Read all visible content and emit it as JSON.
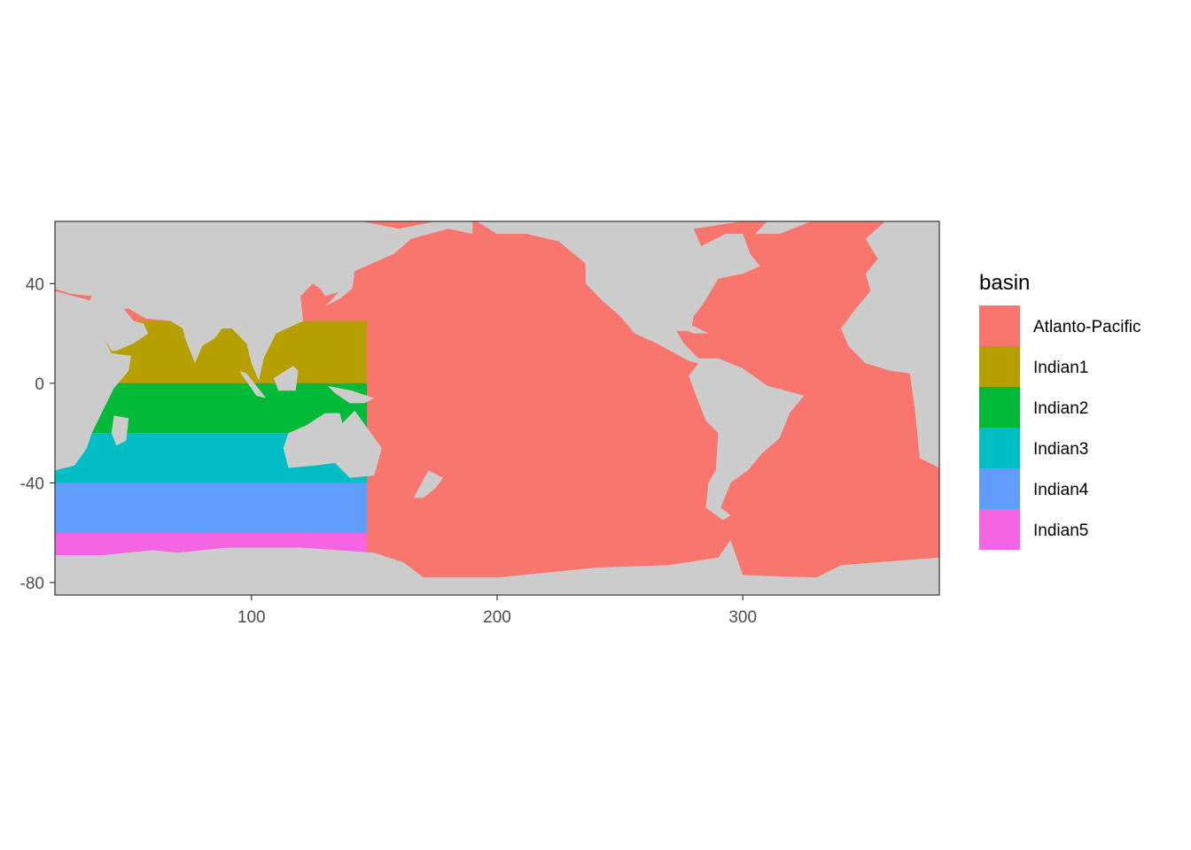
{
  "chart_data": {
    "type": "map",
    "xlim": [
      20,
      380
    ],
    "ylim": [
      -85,
      65
    ],
    "x_ticks": [
      100,
      200,
      300
    ],
    "y_ticks": [
      40,
      0,
      -40,
      -80
    ],
    "x_tick_labels": [
      "100",
      "200",
      "300"
    ],
    "y_tick_labels": [
      "40",
      "0",
      "-40",
      "-80"
    ],
    "land_color": "#cccccc",
    "legend": {
      "title": "basin",
      "placement": "right",
      "entries": [
        {
          "label": "Atlanto-Pacific",
          "color": "#F8766D"
        },
        {
          "label": "Indian1",
          "color": "#B79F00"
        },
        {
          "label": "Indian2",
          "color": "#00BA38"
        },
        {
          "label": "Indian3",
          "color": "#00BFC4"
        },
        {
          "label": "Indian4",
          "color": "#619CFF"
        },
        {
          "label": "Indian5",
          "color": "#F564E3"
        }
      ]
    },
    "basins": [
      {
        "name": "Indian1",
        "lat_range": [
          0,
          25
        ]
      },
      {
        "name": "Indian2",
        "lat_range": [
          -20,
          0
        ]
      },
      {
        "name": "Indian3",
        "lat_range": [
          -40,
          -20
        ]
      },
      {
        "name": "Indian4",
        "lat_range": [
          -60,
          -40
        ]
      },
      {
        "name": "Indian5",
        "lat_range": [
          -70,
          -60
        ]
      }
    ],
    "continents": [
      {
        "name": "Eurasia",
        "points": [
          [
            20,
            65
          ],
          [
            145,
            65
          ],
          [
            160,
            62
          ],
          [
            175,
            65
          ],
          [
            190,
            66
          ],
          [
            190,
            60
          ],
          [
            180,
            62
          ],
          [
            165,
            58
          ],
          [
            158,
            52
          ],
          [
            142,
            45
          ],
          [
            140,
            38
          ],
          [
            130,
            35
          ],
          [
            128,
            38
          ],
          [
            125,
            40
          ],
          [
            120,
            35
          ],
          [
            121,
            25
          ],
          [
            110,
            20
          ],
          [
            105,
            10
          ],
          [
            103,
            1
          ],
          [
            100,
            8
          ],
          [
            98,
            16
          ],
          [
            92,
            22
          ],
          [
            88,
            22
          ],
          [
            85,
            18
          ],
          [
            80,
            15
          ],
          [
            77,
            8
          ],
          [
            73,
            18
          ],
          [
            72,
            22
          ],
          [
            67,
            25
          ],
          [
            57,
            26
          ],
          [
            50,
            30
          ],
          [
            48,
            30
          ],
          [
            52,
            25
          ],
          [
            56,
            24
          ],
          [
            58,
            20
          ],
          [
            52,
            16
          ],
          [
            45,
            13
          ],
          [
            43,
            13
          ],
          [
            40,
            18
          ],
          [
            36,
            25
          ],
          [
            33,
            30
          ],
          [
            35,
            35
          ],
          [
            26,
            36
          ],
          [
            20,
            38
          ]
        ]
      },
      {
        "name": "Africa",
        "points": [
          [
            20,
            37
          ],
          [
            35,
            33
          ],
          [
            40,
            18
          ],
          [
            43,
            12
          ],
          [
            51,
            11
          ],
          [
            50,
            5
          ],
          [
            44,
            -2
          ],
          [
            40,
            -10
          ],
          [
            35,
            -20
          ],
          [
            33,
            -26
          ],
          [
            28,
            -33
          ],
          [
            20,
            -35
          ]
        ]
      },
      {
        "name": "Madagascar",
        "points": [
          [
            44,
            -13
          ],
          [
            50,
            -14
          ],
          [
            49,
            -23
          ],
          [
            45,
            -25
          ],
          [
            43,
            -20
          ]
        ]
      },
      {
        "name": "Australia",
        "points": [
          [
            115,
            -20
          ],
          [
            122,
            -17
          ],
          [
            130,
            -12
          ],
          [
            136,
            -12
          ],
          [
            137,
            -16
          ],
          [
            142,
            -11
          ],
          [
            145,
            -15
          ],
          [
            153,
            -26
          ],
          [
            150,
            -37
          ],
          [
            140,
            -38
          ],
          [
            134,
            -32
          ],
          [
            126,
            -33
          ],
          [
            115,
            -34
          ],
          [
            113,
            -26
          ]
        ]
      },
      {
        "name": "Borneo",
        "points": [
          [
            109,
            2
          ],
          [
            117,
            7
          ],
          [
            119,
            5
          ],
          [
            118,
            -3
          ],
          [
            111,
            -3
          ]
        ]
      },
      {
        "name": "Sumatra",
        "points": [
          [
            95,
            5
          ],
          [
            98,
            4
          ],
          [
            106,
            -6
          ],
          [
            102,
            -5
          ]
        ]
      },
      {
        "name": "New Guinea",
        "points": [
          [
            131,
            -1
          ],
          [
            141,
            -3
          ],
          [
            150,
            -6
          ],
          [
            146,
            -8
          ],
          [
            140,
            -8
          ],
          [
            134,
            -4
          ]
        ]
      },
      {
        "name": "New Zealand",
        "points": [
          [
            166,
            -46
          ],
          [
            172,
            -35
          ],
          [
            178,
            -38
          ],
          [
            175,
            -42
          ],
          [
            170,
            -46
          ]
        ]
      },
      {
        "name": "Japan",
        "points": [
          [
            130,
            31
          ],
          [
            136,
            34
          ],
          [
            141,
            38
          ],
          [
            142,
            44
          ],
          [
            139,
            40
          ],
          [
            133,
            34
          ]
        ]
      },
      {
        "name": "Americas",
        "points": [
          [
            190,
            66
          ],
          [
            200,
            60
          ],
          [
            212,
            60
          ],
          [
            225,
            57
          ],
          [
            236,
            48
          ],
          [
            236,
            40
          ],
          [
            243,
            33
          ],
          [
            250,
            27
          ],
          [
            256,
            20
          ],
          [
            265,
            16
          ],
          [
            278,
            9
          ],
          [
            282,
            8
          ],
          [
            278,
            3
          ],
          [
            281,
            -5
          ],
          [
            285,
            -15
          ],
          [
            290,
            -20
          ],
          [
            289,
            -35
          ],
          [
            286,
            -40
          ],
          [
            285,
            -50
          ],
          [
            292,
            -55
          ],
          [
            295,
            -53
          ],
          [
            291,
            -50
          ],
          [
            295,
            -40
          ],
          [
            302,
            -35
          ],
          [
            308,
            -28
          ],
          [
            315,
            -22
          ],
          [
            319,
            -12
          ],
          [
            325,
            -5
          ],
          [
            310,
            -1
          ],
          [
            300,
            6
          ],
          [
            290,
            10
          ],
          [
            282,
            10
          ],
          [
            276,
            16
          ],
          [
            273,
            21
          ],
          [
            279,
            21
          ],
          [
            280,
            27
          ],
          [
            284,
            32
          ],
          [
            290,
            42
          ],
          [
            300,
            44
          ],
          [
            307,
            47
          ],
          [
            303,
            52
          ],
          [
            300,
            60
          ],
          [
            293,
            60
          ],
          [
            283,
            55
          ],
          [
            280,
            62
          ],
          [
            300,
            65
          ]
        ]
      },
      {
        "name": "Greenland",
        "points": [
          [
            305,
            60
          ],
          [
            315,
            60
          ],
          [
            328,
            65
          ],
          [
            310,
            65
          ]
        ]
      },
      {
        "name": "Europe-Africa-East",
        "points": [
          [
            380,
            65
          ],
          [
            358,
            65
          ],
          [
            350,
            58
          ],
          [
            355,
            50
          ],
          [
            350,
            44
          ],
          [
            352,
            37
          ],
          [
            346,
            30
          ],
          [
            340,
            22
          ],
          [
            343,
            15
          ],
          [
            350,
            8
          ],
          [
            360,
            5
          ],
          [
            368,
            4
          ],
          [
            370,
            -10
          ],
          [
            372,
            -30
          ],
          [
            380,
            -34
          ]
        ]
      },
      {
        "name": "Cuba",
        "points": [
          [
            275,
            22
          ],
          [
            280,
            23
          ],
          [
            286,
            20
          ],
          [
            280,
            20
          ]
        ]
      },
      {
        "name": "Antarctica",
        "points": [
          [
            20,
            -85
          ],
          [
            380,
            -85
          ],
          [
            380,
            -70
          ],
          [
            340,
            -73
          ],
          [
            330,
            -78
          ],
          [
            300,
            -77
          ],
          [
            295,
            -63
          ],
          [
            290,
            -70
          ],
          [
            270,
            -73
          ],
          [
            240,
            -74
          ],
          [
            200,
            -78
          ],
          [
            170,
            -78
          ],
          [
            162,
            -72
          ],
          [
            150,
            -68
          ],
          [
            120,
            -66
          ],
          [
            90,
            -66
          ],
          [
            70,
            -68
          ],
          [
            60,
            -67
          ],
          [
            40,
            -69
          ],
          [
            20,
            -69
          ]
        ]
      }
    ]
  }
}
